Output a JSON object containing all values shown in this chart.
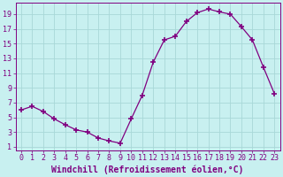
{
  "x": [
    0,
    1,
    2,
    3,
    4,
    5,
    6,
    7,
    8,
    9,
    10,
    11,
    12,
    13,
    14,
    15,
    16,
    17,
    18,
    19,
    20,
    21,
    22,
    23
  ],
  "y": [
    6.0,
    6.5,
    5.8,
    4.8,
    4.0,
    3.3,
    3.0,
    2.2,
    1.8,
    1.5,
    4.8,
    8.0,
    12.5,
    15.5,
    16.0,
    18.0,
    19.2,
    19.7,
    19.3,
    19.0,
    17.3,
    15.5,
    11.8,
    8.2
  ],
  "line_color": "#800080",
  "marker": "+",
  "marker_size": 4,
  "marker_lw": 1.2,
  "bg_color": "#c8f0f0",
  "grid_color": "#a8d8d8",
  "xlabel": "Windchill (Refroidissement éolien,°C)",
  "xlabel_color": "#800080",
  "tick_color": "#800080",
  "xlim": [
    -0.5,
    23.5
  ],
  "ylim": [
    0.5,
    20.5
  ],
  "yticks": [
    1,
    3,
    5,
    7,
    9,
    11,
    13,
    15,
    17,
    19
  ],
  "xticks": [
    0,
    1,
    2,
    3,
    4,
    5,
    6,
    7,
    8,
    9,
    10,
    11,
    12,
    13,
    14,
    15,
    16,
    17,
    18,
    19,
    20,
    21,
    22,
    23
  ],
  "font_size": 6,
  "xlabel_fontsize": 7
}
